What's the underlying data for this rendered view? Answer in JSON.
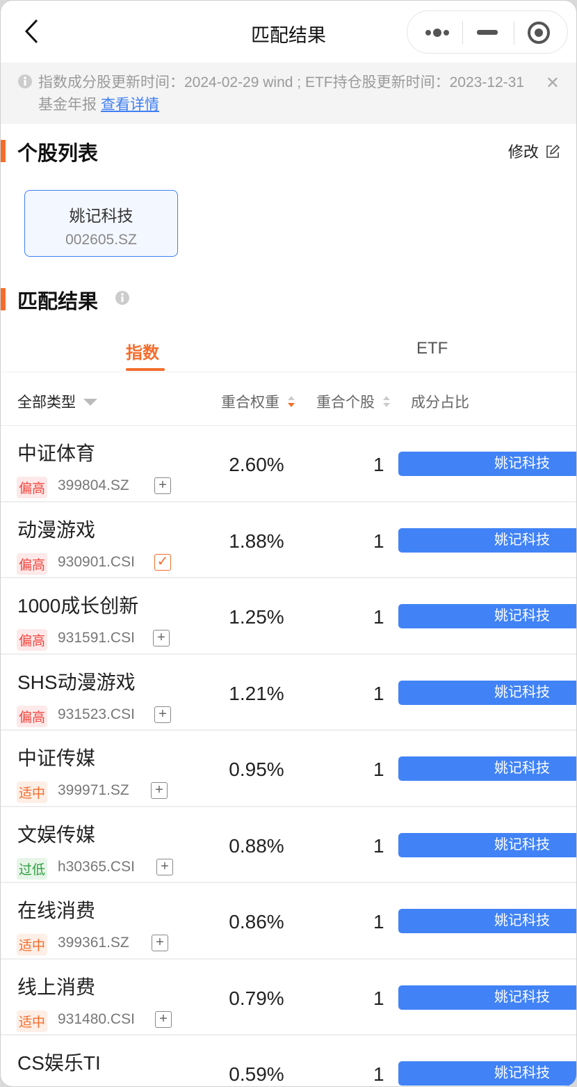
{
  "nav": {
    "title": "匹配结果"
  },
  "notice": {
    "text": "指数成分股更新时间：2024-02-29 wind ; ETF持仓股更新时间：2023-12-31 基金年报",
    "link": "查看详情"
  },
  "stocks_section": {
    "title": "个股列表",
    "edit": "修改",
    "stocks": [
      {
        "name": "姚记科技",
        "code": "002605.SZ"
      }
    ]
  },
  "result_section": {
    "title": "匹配结果",
    "tabs": [
      {
        "label": "指数",
        "active": true
      },
      {
        "label": "ETF",
        "active": false
      }
    ]
  },
  "table": {
    "headers": {
      "type_filter": "全部类型",
      "weight": "重合权重",
      "count": "重合个股",
      "composition": "成分占比"
    },
    "rows": [
      {
        "name": "中证体育",
        "tag": "偏高",
        "code": "399804.SZ",
        "weight": "2.60%",
        "count": "1",
        "stock": "姚记科技",
        "added": false
      },
      {
        "name": "动漫游戏",
        "tag": "偏高",
        "code": "930901.CSI",
        "weight": "1.88%",
        "count": "1",
        "stock": "姚记科技",
        "added": true
      },
      {
        "name": "1000成长创新",
        "tag": "偏高",
        "code": "931591.CSI",
        "weight": "1.25%",
        "count": "1",
        "stock": "姚记科技",
        "added": false
      },
      {
        "name": "SHS动漫游戏",
        "tag": "偏高",
        "code": "931523.CSI",
        "weight": "1.21%",
        "count": "1",
        "stock": "姚记科技",
        "added": false
      },
      {
        "name": "中证传媒",
        "tag": "适中",
        "code": "399971.SZ",
        "weight": "0.95%",
        "count": "1",
        "stock": "姚记科技",
        "added": false
      },
      {
        "name": "文娱传媒",
        "tag": "过低",
        "code": "h30365.CSI",
        "weight": "0.88%",
        "count": "1",
        "stock": "姚记科技",
        "added": false
      },
      {
        "name": "在线消费",
        "tag": "适中",
        "code": "399361.SZ",
        "weight": "0.86%",
        "count": "1",
        "stock": "姚记科技",
        "added": false
      },
      {
        "name": "线上消费",
        "tag": "适中",
        "code": "931480.CSI",
        "weight": "0.79%",
        "count": "1",
        "stock": "姚记科技",
        "added": false
      },
      {
        "name": "CS娱乐TI",
        "tag": "",
        "code": "",
        "weight": "0.59%",
        "count": "1",
        "stock": "姚记科技",
        "added": false
      }
    ]
  },
  "colors": {
    "accent": "#f36d2c",
    "blue": "#4183f6",
    "tag_high": "#f0443c",
    "tag_mid": "#f36d2c",
    "tag_low": "#2e9e3e"
  }
}
